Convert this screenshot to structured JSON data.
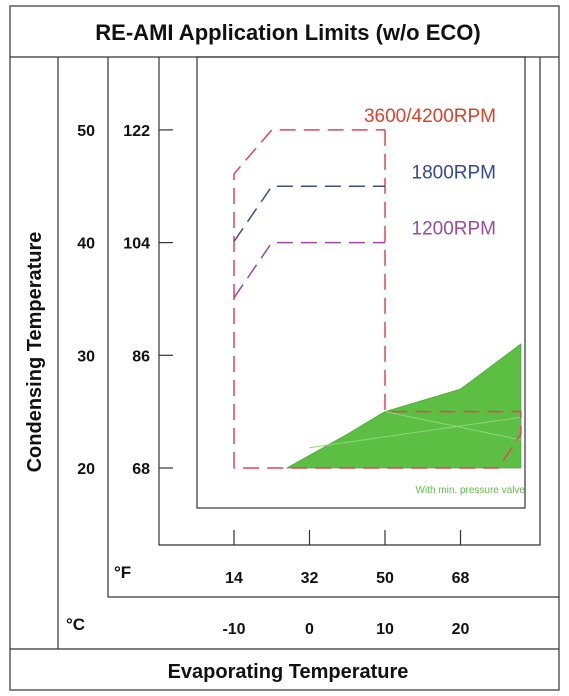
{
  "chart_data": {
    "type": "area",
    "title": "RE-AMI Application Limits (w/o ECO)",
    "ylabel": "Condensing Temperature",
    "xlabel": "Evaporating Temperature",
    "x_unit_f": "°F",
    "x_unit_c": "°C",
    "x_ticks_f": [
      "14",
      "32",
      "50",
      "68"
    ],
    "x_ticks_c": [
      "-10",
      "0",
      "10",
      "20"
    ],
    "y_ticks_c": [
      "50",
      "40",
      "30",
      "20"
    ],
    "y_ticks_f": [
      "122",
      "104",
      "86",
      "68"
    ],
    "xlim_c": [
      -10,
      20
    ],
    "ylim_c": [
      20,
      50
    ],
    "series": [
      {
        "name": "3600/4200RPM",
        "color": "#e2455a",
        "label_color": "#d9422e",
        "style": "dashed",
        "points": [
          [
            -10,
            20
          ],
          [
            -10,
            46.1
          ],
          [
            -5,
            50
          ],
          [
            10,
            50
          ]
        ]
      },
      {
        "name": "1800RPM",
        "color": "#3a4f94",
        "label_color": "#34489a",
        "style": "dashed",
        "points": [
          [
            -10,
            40.1
          ],
          [
            -5,
            45
          ],
          [
            10,
            45
          ]
        ]
      },
      {
        "name": "1200RPM",
        "color": "#9a4a9e",
        "label_color": "#9a4a9e",
        "style": "dashed",
        "points": [
          [
            -10,
            35.1
          ],
          [
            -5,
            40
          ],
          [
            10,
            40
          ]
        ]
      }
    ],
    "envelope_right": {
      "color": "#e2455a",
      "style": "dashed",
      "points": [
        [
          10,
          50
        ],
        [
          10,
          25
        ],
        [
          20,
          25
        ],
        [
          28,
          25
        ],
        [
          28,
          23
        ],
        [
          25,
          20
        ],
        [
          -10,
          20
        ]
      ]
    },
    "pressure_valve_region": {
      "name": "With min. pressure valve",
      "color": "#5cbf43",
      "points": [
        [
          -3,
          20
        ],
        [
          28,
          20
        ],
        [
          28,
          23
        ],
        [
          28,
          31
        ],
        [
          20,
          27
        ],
        [
          10,
          25
        ],
        [
          5,
          23
        ]
      ]
    }
  }
}
